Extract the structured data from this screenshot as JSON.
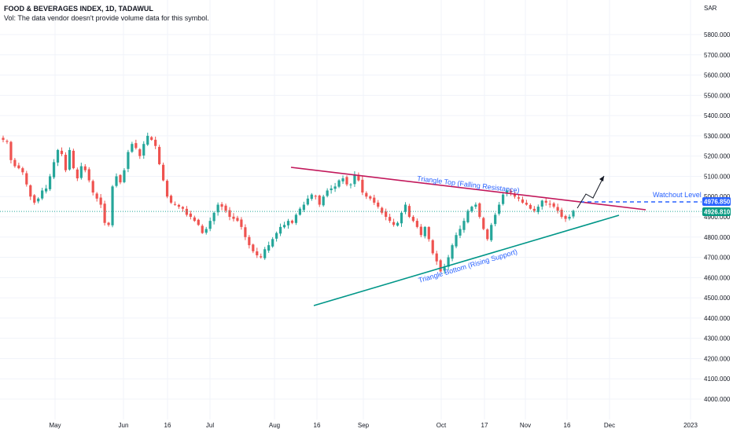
{
  "header": {
    "title": "FOOD & BEVERAGES INDEX, 1D, TADAWUL",
    "volume_note": "Vol: The data vendor doesn't provide volume data for this symbol."
  },
  "colors": {
    "up": "#26a69a",
    "down": "#ef5350",
    "resistance": "#c2185b",
    "support": "#009688",
    "annotation": "#2962ff",
    "price_badge": "#089981",
    "grid": "#f0f3fa"
  },
  "chart_data": {
    "type": "candlestick",
    "currency": "SAR",
    "ylim": [
      3960,
      5950
    ],
    "y_ticks": [
      "5800.000",
      "5700.000",
      "5600.000",
      "5500.000",
      "5400.000",
      "5300.000",
      "5200.000",
      "5100.000",
      "5000.000",
      "4900.000",
      "4800.000",
      "4700.000",
      "4600.000",
      "4500.000",
      "4400.000",
      "4300.000",
      "4200.000",
      "4100.000",
      "4000.000"
    ],
    "x_ticks": [
      "May",
      "Jun",
      "16",
      "Jul",
      "Aug",
      "16",
      "Sep",
      "Oct",
      "17",
      "Nov",
      "16",
      "Dec",
      "2023"
    ],
    "current_price": "4926.810",
    "price_line_value": 4926.81,
    "annotations": {
      "resistance_label": "Triangle Top (Falling Resistance)",
      "support_label": "Triangle Bottom (Rising Support)",
      "watchout_label": "Watchout Level",
      "watchout_value": "4976.850"
    },
    "closes": [
      5280,
      5270,
      5180,
      5150,
      5140,
      5120,
      5060,
      5000,
      4970,
      4990,
      5030,
      5040,
      5100,
      5170,
      5230,
      5210,
      5130,
      5230,
      5140,
      5090,
      5150,
      5130,
      5080,
      5020,
      4990,
      4960,
      4870,
      4860,
      5050,
      5100,
      5070,
      5130,
      5220,
      5260,
      5240,
      5200,
      5260,
      5300,
      5280,
      5250,
      5160,
      5080,
      5000,
      4970,
      4960,
      4950,
      4940,
      4910,
      4900,
      4880,
      4860,
      4820,
      4840,
      4880,
      4920,
      4960,
      4950,
      4930,
      4900,
      4890,
      4880,
      4850,
      4800,
      4760,
      4730,
      4710,
      4700,
      4740,
      4760,
      4790,
      4820,
      4850,
      4860,
      4880,
      4870,
      4910,
      4940,
      4960,
      4990,
      5010,
      5000,
      4960,
      5000,
      5030,
      5040,
      5050,
      5080,
      5090,
      5060,
      5060,
      5110,
      5080,
      5020,
      5000,
      4990,
      4970,
      4950,
      4920,
      4900,
      4880,
      4860,
      4870,
      4920,
      4960,
      4900,
      4880,
      4850,
      4810,
      4850,
      4790,
      4720,
      4680,
      4630,
      4650,
      4700,
      4760,
      4810,
      4840,
      4880,
      4930,
      4950,
      4960,
      4900,
      4840,
      4790,
      4860,
      4910,
      4960,
      5010,
      5030,
      5020,
      5000,
      4990,
      4970,
      4960,
      4940,
      4930,
      4950,
      4980,
      4970,
      4960,
      4950,
      4930,
      4900,
      4890,
      4900,
      4930
    ]
  }
}
